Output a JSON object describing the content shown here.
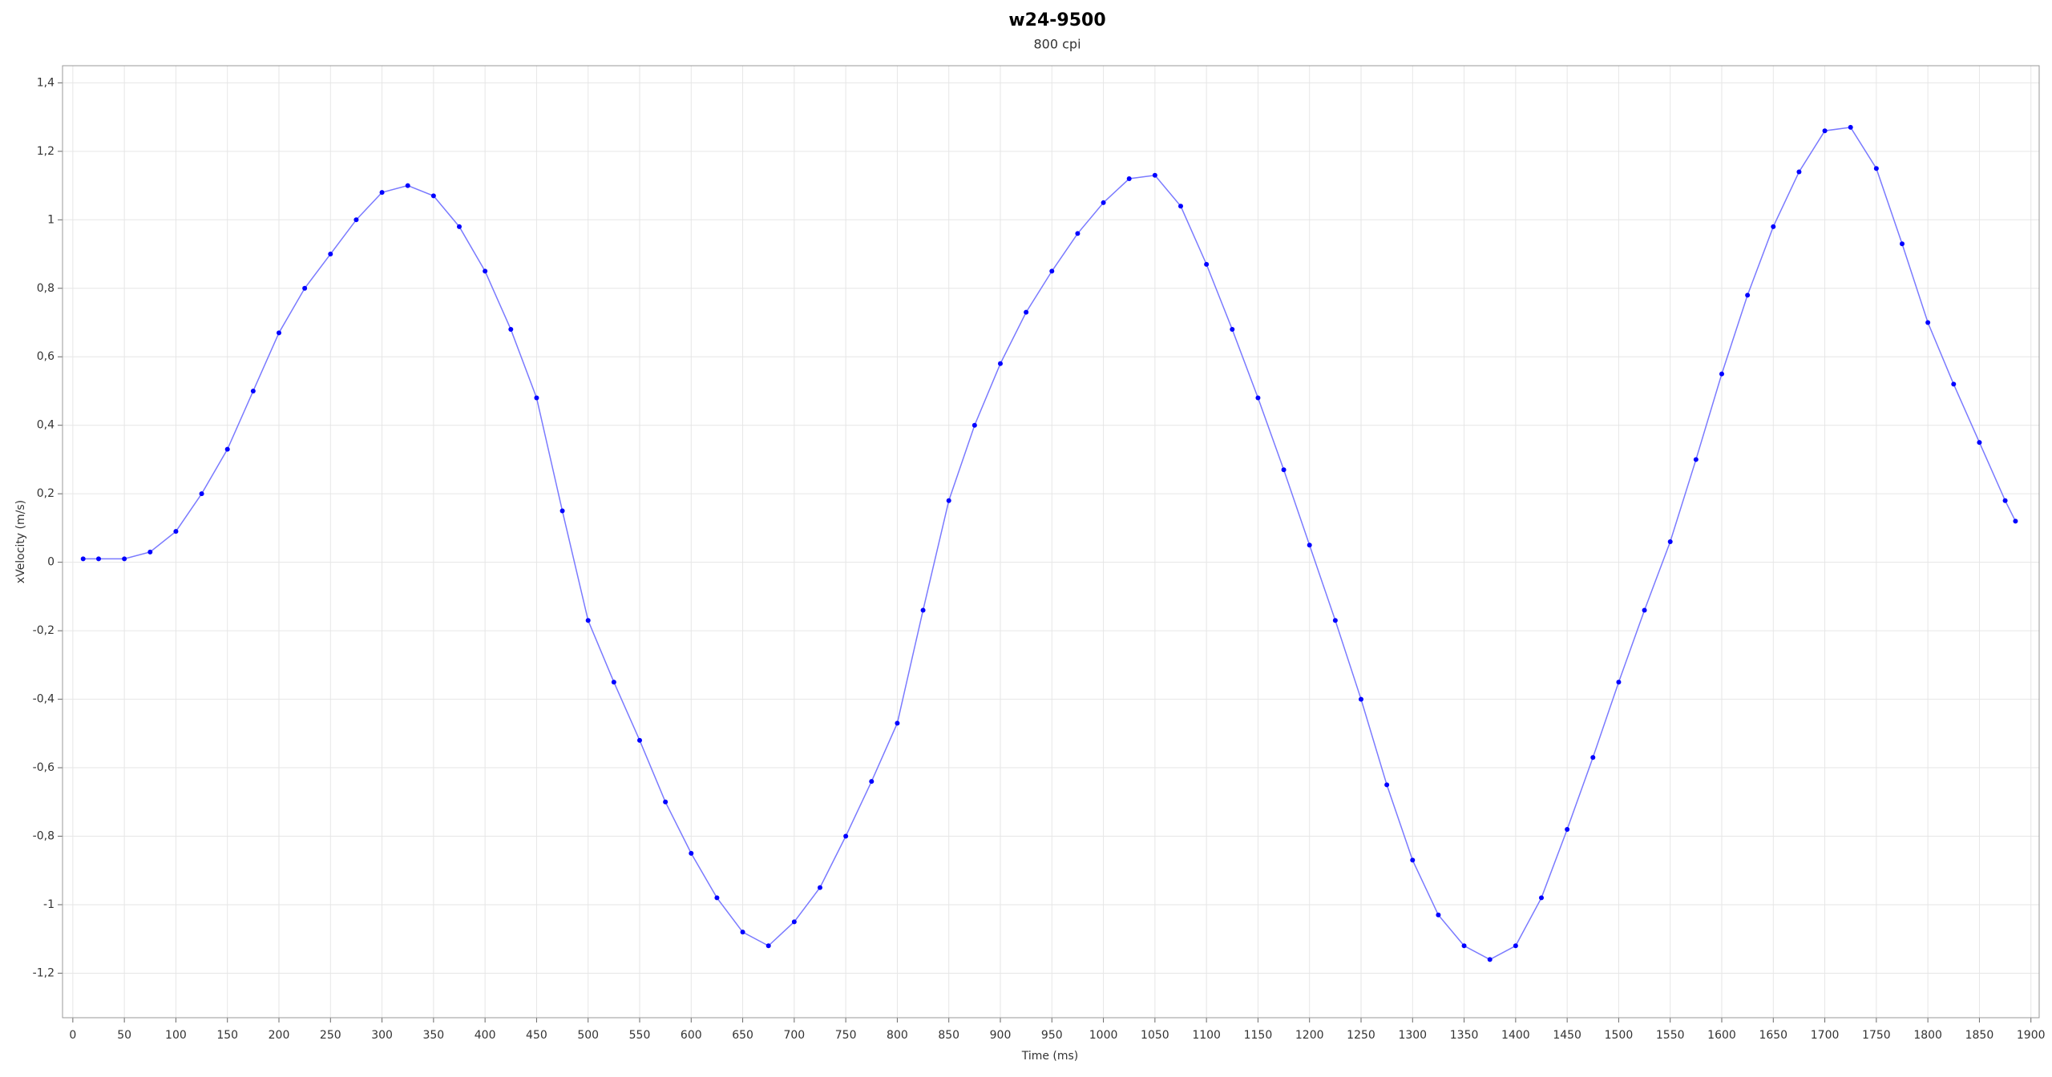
{
  "chart_data": {
    "type": "line",
    "title": "w24-9500",
    "subtitle": "800 cpi",
    "x_label": "Time (ms)",
    "y_label": "xVelocity (m/s)",
    "color": "#0000ff",
    "line_color": "#7a7aff",
    "grid": true,
    "markers": true,
    "x": [
      10,
      25,
      50,
      75,
      100,
      125,
      150,
      175,
      200,
      225,
      250,
      275,
      300,
      325,
      350,
      375,
      400,
      425,
      450,
      475,
      500,
      525,
      550,
      575,
      600,
      625,
      650,
      675,
      700,
      725,
      750,
      775,
      800,
      825,
      850,
      875,
      900,
      925,
      950,
      975,
      1000,
      1025,
      1050,
      1075,
      1100,
      1125,
      1150,
      1175,
      1200,
      1225,
      1250,
      1275,
      1300,
      1325,
      1350,
      1375,
      1400,
      1425,
      1450,
      1475,
      1500,
      1525,
      1550,
      1575,
      1600,
      1625,
      1650,
      1675,
      1700,
      1725,
      1750,
      1775,
      1800,
      1825,
      1850,
      1875,
      1885
    ],
    "values": [
      0.01,
      0.01,
      0.01,
      0.03,
      0.09,
      0.2,
      0.33,
      0.5,
      0.67,
      0.8,
      0.9,
      1.0,
      1.08,
      1.1,
      1.07,
      0.98,
      0.85,
      0.68,
      0.48,
      0.15,
      -0.17,
      -0.35,
      -0.52,
      -0.7,
      -0.85,
      -0.98,
      -1.08,
      -1.12,
      -1.05,
      -0.95,
      -0.8,
      -0.64,
      -0.47,
      -0.14,
      0.18,
      0.4,
      0.58,
      0.73,
      0.85,
      0.96,
      1.05,
      1.12,
      1.13,
      1.04,
      0.87,
      0.68,
      0.48,
      0.27,
      0.05,
      -0.17,
      -0.4,
      -0.65,
      -0.87,
      -1.03,
      -1.12,
      -1.16,
      -1.12,
      -0.98,
      -0.78,
      -0.57,
      -0.35,
      -0.14,
      0.06,
      0.3,
      0.55,
      0.78,
      0.98,
      1.14,
      1.26,
      1.27,
      1.15,
      0.93,
      0.7,
      0.52,
      0.35,
      0.18,
      0.12
    ],
    "xlim": [
      -10,
      1908
    ],
    "ylim": [
      -1.33,
      1.45
    ],
    "xticks": [
      0,
      50,
      100,
      150,
      200,
      250,
      300,
      350,
      400,
      450,
      500,
      550,
      600,
      650,
      700,
      750,
      800,
      850,
      900,
      950,
      1000,
      1050,
      1100,
      1150,
      1200,
      1250,
      1300,
      1350,
      1400,
      1450,
      1500,
      1550,
      1600,
      1650,
      1700,
      1750,
      1800,
      1850,
      1900
    ],
    "yticks": [
      {
        "value": -1.2,
        "label": "-1,2"
      },
      -1,
      {
        "value": -0.8,
        "label": "-0,8"
      },
      {
        "value": -0.6,
        "label": "-0,6"
      },
      {
        "value": -0.4,
        "label": "-0,4"
      },
      {
        "value": -0.2,
        "label": "-0,2"
      },
      0,
      {
        "value": 0.2,
        "label": "0,2"
      },
      {
        "value": 0.4,
        "label": "0,4"
      },
      {
        "value": 0.6,
        "label": "0,6"
      },
      {
        "value": 0.8,
        "label": "0,8"
      },
      1,
      {
        "value": 1.2,
        "label": "1,2"
      },
      {
        "value": 1.4,
        "label": "1,4"
      }
    ]
  }
}
